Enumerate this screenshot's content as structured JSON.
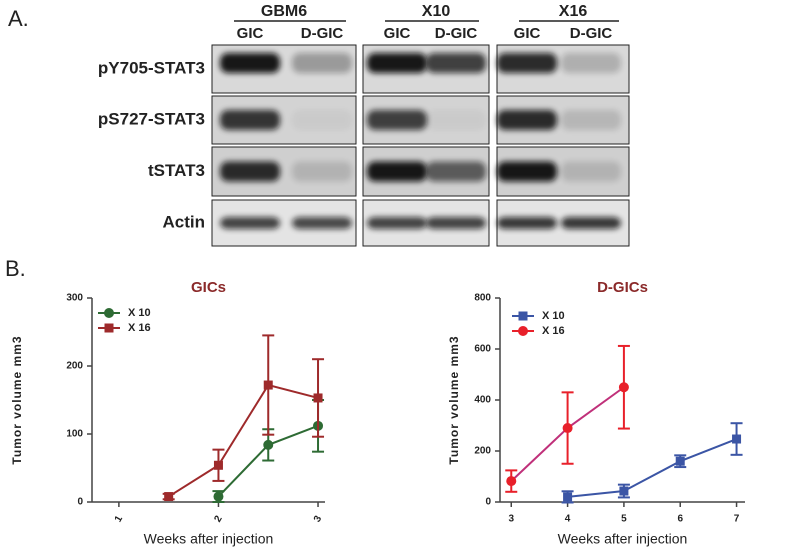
{
  "blot": {
    "panel": "A.",
    "groups": [
      {
        "name": "GBM6",
        "lanes": [
          "GIC",
          "D-GIC"
        ]
      },
      {
        "name": "X10",
        "lanes": [
          "GIC",
          "D-GIC"
        ]
      },
      {
        "name": "X16",
        "lanes": [
          "GIC",
          "D-GIC"
        ]
      }
    ],
    "rows": [
      "pY705-STAT3",
      "pS727-STAT3",
      "tSTAT3",
      "Actin"
    ]
  },
  "panel_b": "B.",
  "chart_data": [
    {
      "type": "line",
      "title": "GICs",
      "x_label": "Weeks after injection",
      "y_label": "Tumor volume mm3",
      "x": [
        1.5,
        2,
        2.5,
        3
      ],
      "series": [
        {
          "name": "X 10",
          "color": "#2e6b34",
          "marker": "circle",
          "values": [
            null,
            8,
            84,
            112
          ],
          "errors": [
            null,
            8,
            23,
            38
          ]
        },
        {
          "name": "X 16",
          "color": "#9e2a2b",
          "marker": "square",
          "values": [
            8,
            54,
            172,
            153
          ],
          "errors": [
            4,
            23,
            73,
            57
          ]
        }
      ],
      "xlim": [
        0.73,
        3.07
      ],
      "xticks": [
        1,
        2,
        3
      ],
      "ylim": [
        0,
        300
      ],
      "yticks": [
        0,
        100,
        200,
        300
      ],
      "grid": false,
      "legend": "upper left"
    },
    {
      "type": "line",
      "title": "D-GICs",
      "x_label": "Weeks after injection",
      "y_label": "Tumor volume mm3",
      "x": [
        3,
        4,
        5,
        6,
        7
      ],
      "series": [
        {
          "name": "X 10",
          "color": "#3b55a5",
          "marker": "square",
          "values": [
            null,
            20,
            43,
            160,
            247
          ],
          "errors": [
            null,
            22,
            25,
            23,
            62
          ]
        },
        {
          "name": "X 16",
          "color": "#e8202a",
          "line_color": "#c0307a",
          "marker": "circle",
          "values": [
            82,
            290,
            450,
            null,
            null
          ],
          "errors": [
            42,
            140,
            162,
            null,
            null
          ]
        }
      ],
      "xlim": [
        2.8,
        7.15
      ],
      "xticks": [
        3,
        4,
        5,
        6,
        7
      ],
      "ylim": [
        0,
        800
      ],
      "yticks": [
        0,
        200,
        400,
        600,
        800
      ],
      "grid": false,
      "legend": "upper left"
    }
  ]
}
